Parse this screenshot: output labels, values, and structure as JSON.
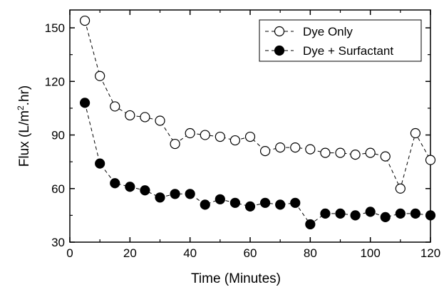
{
  "chart_data": {
    "type": "scatter",
    "title": "",
    "xlabel": "Time (Minutes)",
    "ylabel_main": "Flux (L/m",
    "ylabel_sup": "2",
    "ylabel_tail": ".hr)",
    "xlim": [
      0,
      120
    ],
    "ylim": [
      30,
      160
    ],
    "xticks": [
      0,
      20,
      40,
      60,
      80,
      100,
      120
    ],
    "yticks": [
      30,
      60,
      90,
      120,
      150
    ],
    "grid": false,
    "legend_position": "top-right",
    "series": [
      {
        "name": "Dye Only",
        "marker": "open-circle",
        "line_style": "dashed",
        "x": [
          5,
          10,
          15,
          20,
          25,
          30,
          35,
          40,
          45,
          50,
          55,
          60,
          65,
          70,
          75,
          80,
          85,
          90,
          95,
          100,
          105,
          110,
          115,
          120
        ],
        "y": [
          154,
          123,
          106,
          101,
          100,
          98,
          85,
          91,
          90,
          89,
          87,
          89,
          81,
          83,
          83,
          82,
          80,
          80,
          79,
          80,
          78,
          60,
          91,
          76
        ]
      },
      {
        "name": "Dye + Surfactant",
        "marker": "filled-circle",
        "line_style": "dashed",
        "x": [
          5,
          10,
          15,
          20,
          25,
          30,
          35,
          40,
          45,
          50,
          55,
          60,
          65,
          70,
          75,
          80,
          85,
          90,
          95,
          100,
          105,
          110,
          115,
          120
        ],
        "y": [
          108,
          74,
          63,
          61,
          59,
          55,
          57,
          57,
          51,
          54,
          52,
          50,
          52,
          51,
          52,
          40,
          46,
          46,
          45,
          47,
          44,
          46,
          46,
          45
        ]
      }
    ]
  }
}
